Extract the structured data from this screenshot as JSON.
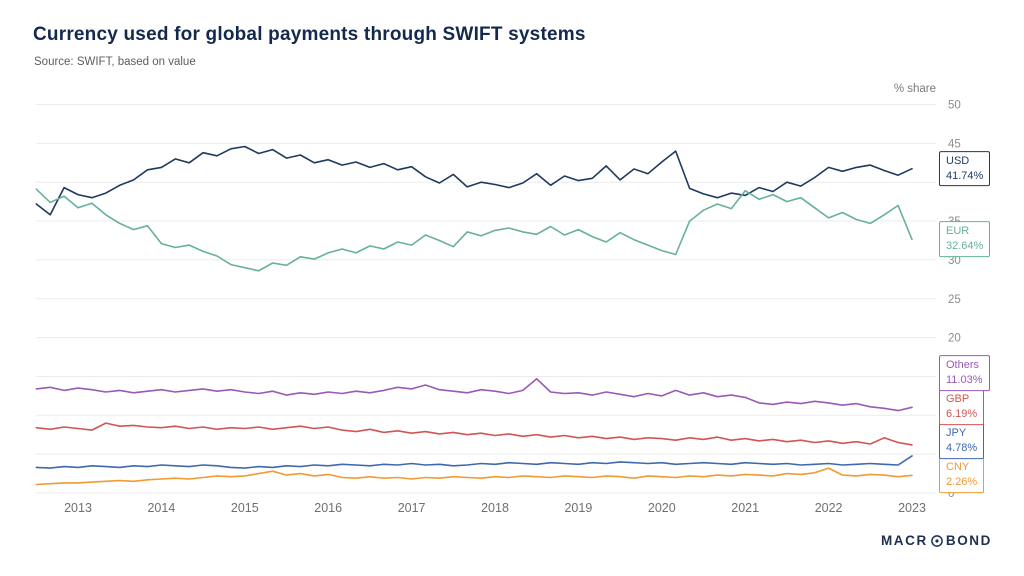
{
  "chart_data": {
    "type": "line",
    "title": "Currency used for global payments through SWIFT systems",
    "subtitle": "Source: SWIFT, based on value",
    "unit_label": "% share",
    "branding_text": "MACROBOND",
    "grid": true,
    "legend_position": "right-edge-end-labels",
    "x_axis": {
      "ticks": [
        2013,
        2014,
        2015,
        2016,
        2017,
        2018,
        2019,
        2020,
        2021,
        2022,
        2023
      ]
    },
    "y_axis": {
      "min": 0,
      "max": 50,
      "tick_step": 5,
      "ticks": [
        0,
        5,
        10,
        15,
        20,
        25,
        30,
        35,
        40,
        45,
        50
      ]
    },
    "x_start": 2012.5,
    "x_step": 0.166667,
    "series": [
      {
        "name": "USD",
        "end_label": "41.74%",
        "color": "#1e3a5f",
        "values": [
          37.2,
          35.8,
          39.3,
          38.4,
          38.0,
          38.6,
          39.6,
          40.3,
          41.6,
          41.9,
          43.0,
          42.5,
          43.8,
          43.4,
          44.3,
          44.6,
          43.7,
          44.2,
          43.1,
          43.5,
          42.5,
          42.9,
          42.2,
          42.6,
          41.9,
          42.4,
          41.6,
          42.0,
          40.7,
          39.9,
          41.0,
          39.4,
          40.0,
          39.7,
          39.3,
          39.9,
          41.1,
          39.6,
          40.8,
          40.2,
          40.5,
          42.1,
          40.3,
          41.7,
          41.1,
          42.6,
          44.0,
          39.2,
          38.5,
          38.0,
          38.6,
          38.3,
          39.3,
          38.8,
          40.0,
          39.5,
          40.6,
          41.9,
          41.4,
          41.9,
          42.2,
          41.5,
          40.9,
          41.74
        ]
      },
      {
        "name": "EUR",
        "end_label": "32.64%",
        "color": "#66b09e",
        "values": [
          39.1,
          37.4,
          38.2,
          36.7,
          37.3,
          35.8,
          34.7,
          33.9,
          34.4,
          32.1,
          31.6,
          31.9,
          31.1,
          30.5,
          29.4,
          29.0,
          28.6,
          29.6,
          29.3,
          30.4,
          30.1,
          30.9,
          31.4,
          30.9,
          31.8,
          31.4,
          32.3,
          31.9,
          33.2,
          32.5,
          31.7,
          33.6,
          33.1,
          33.8,
          34.1,
          33.6,
          33.3,
          34.3,
          33.2,
          33.9,
          33.0,
          32.3,
          33.5,
          32.6,
          31.9,
          31.2,
          30.7,
          35.0,
          36.4,
          37.2,
          36.6,
          38.9,
          37.8,
          38.4,
          37.5,
          38.0,
          36.7,
          35.4,
          36.1,
          35.2,
          34.7,
          35.8,
          37.0,
          32.64
        ]
      },
      {
        "name": "Others",
        "end_label": "11.03%",
        "color": "#9b59b6",
        "values": [
          13.4,
          13.6,
          13.2,
          13.5,
          13.3,
          13.0,
          13.2,
          12.9,
          13.1,
          13.3,
          13.0,
          13.2,
          13.4,
          13.1,
          13.3,
          13.0,
          12.8,
          13.1,
          12.6,
          12.9,
          12.7,
          13.0,
          12.8,
          13.1,
          12.9,
          13.2,
          13.6,
          13.4,
          13.9,
          13.3,
          13.1,
          12.9,
          13.3,
          13.1,
          12.8,
          13.2,
          14.7,
          13.0,
          12.8,
          12.9,
          12.6,
          13.0,
          12.7,
          12.4,
          12.8,
          12.5,
          13.2,
          12.6,
          12.9,
          12.4,
          12.6,
          12.3,
          11.6,
          11.4,
          11.7,
          11.5,
          11.8,
          11.6,
          11.3,
          11.5,
          11.1,
          10.9,
          10.6,
          11.03
        ]
      },
      {
        "name": "GBP",
        "end_label": "6.19%",
        "color": "#d25555",
        "values": [
          8.4,
          8.2,
          8.5,
          8.3,
          8.1,
          9.0,
          8.6,
          8.7,
          8.5,
          8.4,
          8.6,
          8.3,
          8.5,
          8.2,
          8.4,
          8.3,
          8.5,
          8.2,
          8.4,
          8.6,
          8.3,
          8.5,
          8.1,
          7.9,
          8.2,
          7.8,
          8.0,
          7.7,
          7.9,
          7.6,
          7.8,
          7.5,
          7.7,
          7.4,
          7.6,
          7.3,
          7.5,
          7.2,
          7.4,
          7.1,
          7.3,
          7.0,
          7.2,
          6.9,
          7.1,
          7.0,
          6.8,
          7.1,
          6.9,
          7.2,
          6.8,
          7.0,
          6.7,
          6.9,
          6.6,
          6.8,
          6.5,
          6.7,
          6.4,
          6.6,
          6.3,
          7.1,
          6.5,
          6.19
        ]
      },
      {
        "name": "JPY",
        "end_label": "4.78%",
        "color": "#3e68b0",
        "values": [
          3.3,
          3.2,
          3.4,
          3.3,
          3.5,
          3.4,
          3.3,
          3.5,
          3.4,
          3.6,
          3.5,
          3.4,
          3.6,
          3.5,
          3.3,
          3.2,
          3.4,
          3.3,
          3.5,
          3.4,
          3.6,
          3.5,
          3.7,
          3.6,
          3.5,
          3.7,
          3.6,
          3.8,
          3.6,
          3.7,
          3.5,
          3.6,
          3.8,
          3.7,
          3.9,
          3.8,
          3.7,
          3.9,
          3.8,
          3.7,
          3.9,
          3.8,
          4.0,
          3.9,
          3.8,
          3.9,
          3.7,
          3.8,
          3.9,
          3.8,
          3.7,
          3.9,
          3.8,
          3.7,
          3.8,
          3.6,
          3.7,
          3.8,
          3.6,
          3.7,
          3.8,
          3.7,
          3.6,
          4.78
        ]
      },
      {
        "name": "CNY",
        "end_label": "2.26%",
        "color": "#f09b33",
        "values": [
          1.1,
          1.2,
          1.3,
          1.3,
          1.4,
          1.5,
          1.6,
          1.5,
          1.7,
          1.8,
          1.9,
          1.8,
          2.0,
          2.2,
          2.1,
          2.2,
          2.5,
          2.8,
          2.3,
          2.5,
          2.2,
          2.4,
          2.0,
          1.9,
          2.1,
          1.9,
          2.0,
          1.8,
          2.0,
          1.9,
          2.1,
          2.0,
          1.9,
          2.1,
          2.0,
          2.2,
          2.1,
          2.0,
          2.2,
          2.1,
          2.0,
          2.2,
          2.1,
          1.9,
          2.2,
          2.1,
          2.0,
          2.2,
          2.1,
          2.3,
          2.2,
          2.4,
          2.3,
          2.2,
          2.5,
          2.4,
          2.6,
          3.2,
          2.3,
          2.2,
          2.4,
          2.3,
          2.1,
          2.26
        ]
      }
    ]
  }
}
